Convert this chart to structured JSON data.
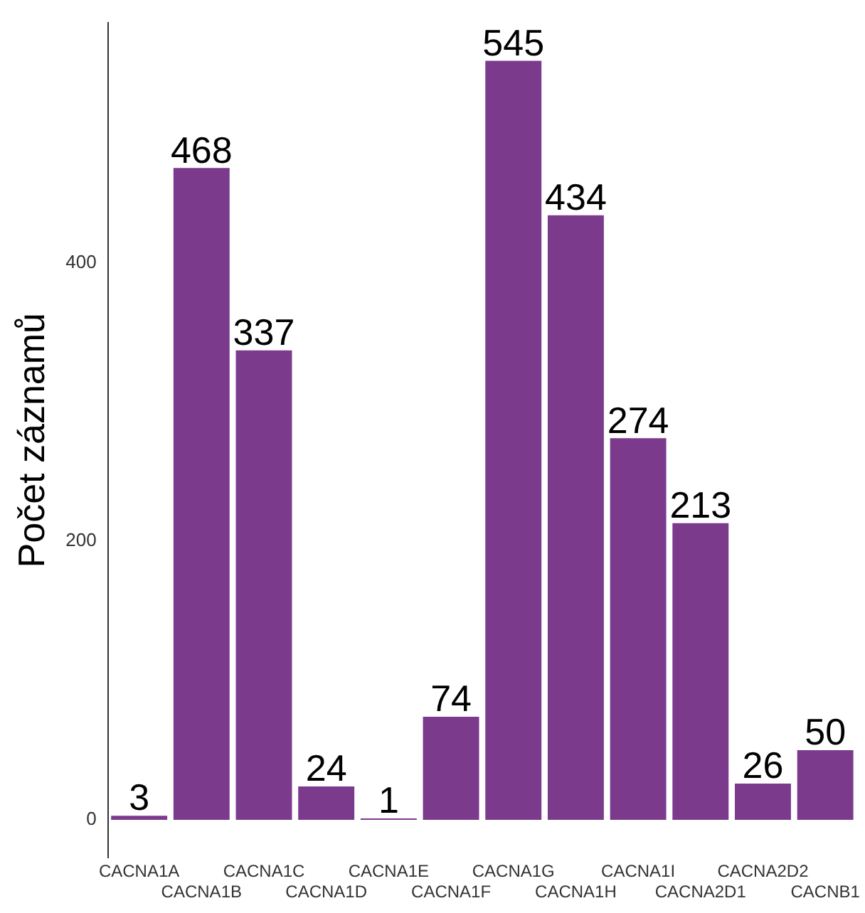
{
  "chart_data": {
    "type": "bar",
    "ylabel": "Počet záznamů",
    "categories": [
      "CACNA1A",
      "CACNA1B",
      "CACNA1C",
      "CACNA1D",
      "CACNA1E",
      "CACNA1F",
      "CACNA1G",
      "CACNA1H",
      "CACNA1I",
      "CACNA2D1",
      "CACNA2D2",
      "CACNB1"
    ],
    "values": [
      3,
      468,
      337,
      24,
      1,
      74,
      545,
      434,
      274,
      213,
      26,
      50
    ],
    "color": "#7b3a8c",
    "ylim": [
      -27.25,
      572.25
    ],
    "yticks": [
      0,
      200,
      400
    ],
    "grid": false,
    "legend": false,
    "data_labels": true
  }
}
